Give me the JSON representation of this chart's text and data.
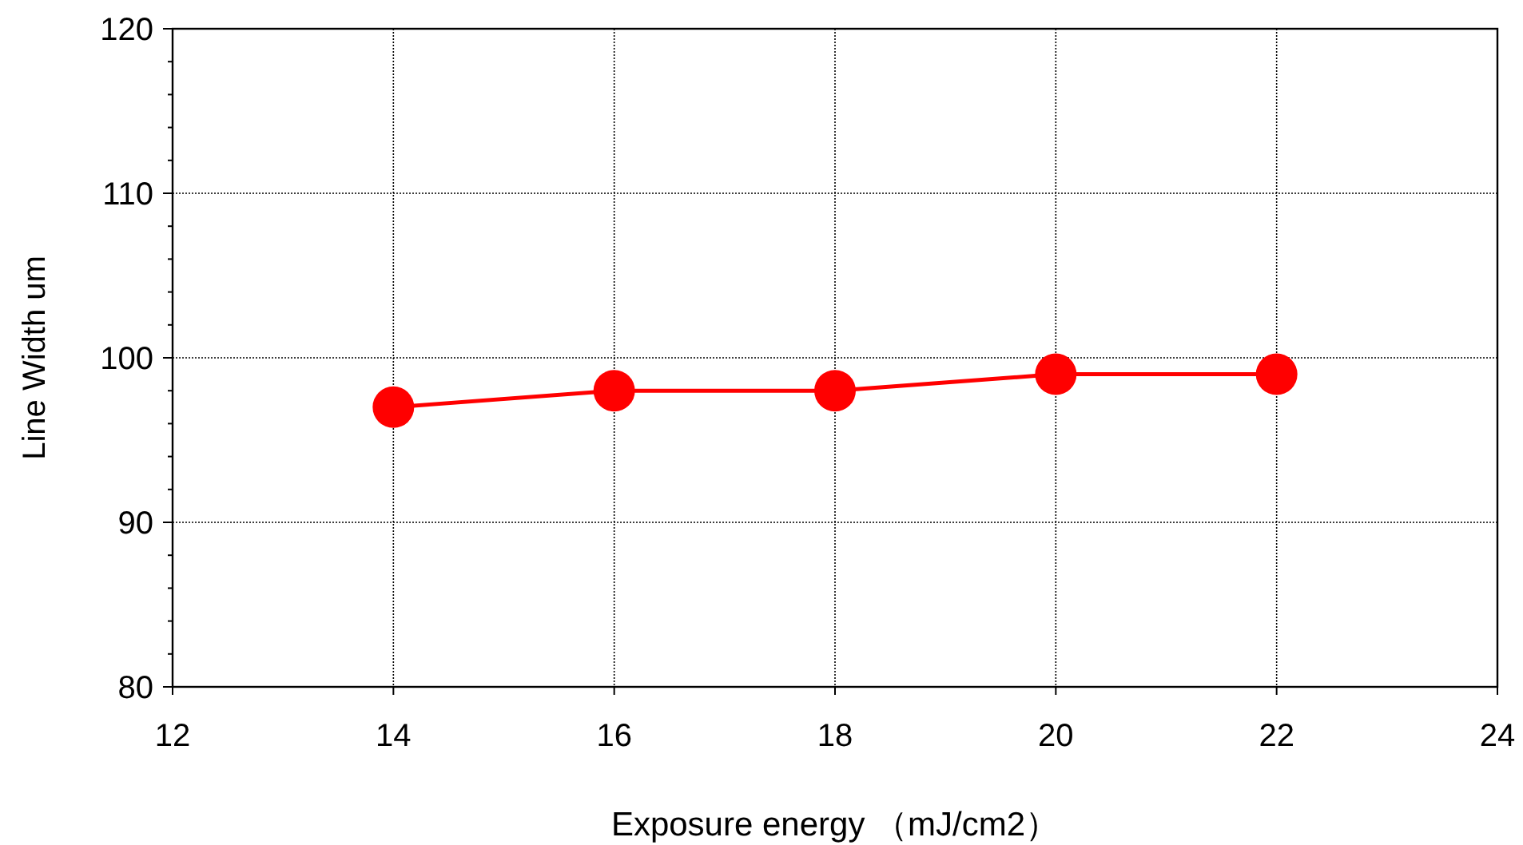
{
  "chart_data": {
    "type": "line",
    "xlabel": "Exposure energy （mJ/cm2）",
    "ylabel": "Line Width um",
    "x": [
      14,
      16,
      18,
      20,
      22
    ],
    "series": [
      {
        "color": "#ff0000",
        "values": [
          97,
          98,
          98,
          99,
          99
        ]
      }
    ],
    "xlim": [
      12,
      24
    ],
    "xticks": [
      12,
      14,
      16,
      18,
      20,
      22,
      24
    ],
    "ylim": [
      80,
      120
    ],
    "yticks": [
      80,
      90,
      100,
      110,
      120
    ],
    "grid": true,
    "marker": "circle",
    "line_style": "solid"
  }
}
